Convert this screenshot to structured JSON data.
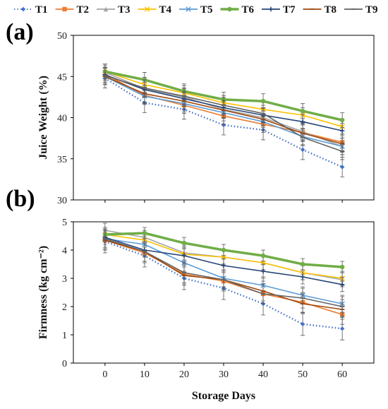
{
  "chart_data": {
    "type": "line",
    "x": [
      0,
      10,
      20,
      30,
      40,
      50,
      60
    ],
    "xlabel": "Storage Days",
    "xlim": [
      -8,
      68
    ],
    "legend_position": "top",
    "legend": [
      {
        "name": "T1",
        "color": "#4472c4",
        "dash": "dot",
        "marker": "diamond"
      },
      {
        "name": "T2",
        "color": "#ed7d31",
        "dash": "solid",
        "marker": "square"
      },
      {
        "name": "T3",
        "color": "#a5a5a5",
        "dash": "solid",
        "marker": "triangle"
      },
      {
        "name": "T4",
        "color": "#ffc000",
        "dash": "solid",
        "marker": "x"
      },
      {
        "name": "T5",
        "color": "#5b9bd5",
        "dash": "solid",
        "marker": "x"
      },
      {
        "name": "T6",
        "color": "#70ad47",
        "dash": "solid",
        "marker": "circle",
        "width": 3.5
      },
      {
        "name": "T7",
        "color": "#264478",
        "dash": "solid",
        "marker": "plus"
      },
      {
        "name": "T8",
        "color": "#9e480e",
        "dash": "solid",
        "marker": "dash"
      },
      {
        "name": "T9",
        "color": "#636363",
        "dash": "solid",
        "marker": "dash"
      }
    ],
    "panels": [
      {
        "label": "(a)",
        "ylabel": "Juice Weight (%)",
        "ylim": [
          30,
          50
        ],
        "yticks": [
          30,
          35,
          40,
          45,
          50
        ],
        "grid": false,
        "series": [
          {
            "name": "T1",
            "values": [
              44.8,
              41.8,
              41.0,
              39.1,
              38.5,
              36.1,
              34.0
            ],
            "err": [
              1.2,
              1.2,
              1.2,
              1.2,
              1.2,
              1.2,
              1.2
            ]
          },
          {
            "name": "T2",
            "values": [
              45.3,
              42.7,
              41.5,
              40.2,
              39.2,
              38.2,
              37.0
            ],
            "err": [
              1.0,
              1.0,
              1.0,
              1.0,
              1.0,
              1.0,
              1.0
            ]
          },
          {
            "name": "T3",
            "values": [
              45.5,
              43.5,
              42.5,
              41.0,
              40.0,
              38.3,
              36.5
            ],
            "err": [
              1.0,
              1.0,
              1.0,
              1.0,
              1.0,
              1.0,
              1.0
            ]
          },
          {
            "name": "T4",
            "values": [
              45.6,
              44.0,
              43.0,
              41.8,
              41.0,
              40.3,
              38.9
            ],
            "err": [
              0.9,
              0.9,
              0.9,
              0.9,
              0.9,
              0.9,
              0.9
            ]
          },
          {
            "name": "T5",
            "values": [
              45.0,
              42.6,
              41.7,
              40.6,
              39.5,
              37.7,
              36.5
            ],
            "err": [
              1.0,
              1.0,
              1.0,
              1.0,
              1.0,
              1.0,
              1.0
            ]
          },
          {
            "name": "T6",
            "values": [
              45.6,
              44.6,
              43.2,
              42.2,
              42.0,
              40.8,
              39.7
            ],
            "err": [
              0.9,
              0.9,
              0.9,
              0.9,
              0.9,
              0.9,
              0.9
            ]
          },
          {
            "name": "T7",
            "values": [
              45.2,
              43.4,
              42.3,
              41.2,
              40.3,
              39.5,
              38.4
            ],
            "err": [
              0.9,
              0.9,
              0.9,
              0.9,
              0.9,
              0.9,
              0.9
            ]
          },
          {
            "name": "T8",
            "values": [
              45.0,
              42.9,
              42.0,
              40.9,
              39.8,
              38.1,
              36.8
            ],
            "err": [
              1.0,
              1.0,
              1.0,
              1.0,
              1.0,
              1.0,
              1.0
            ]
          },
          {
            "name": "T9",
            "values": [
              45.1,
              43.6,
              42.6,
              41.5,
              40.5,
              37.6,
              35.9
            ],
            "err": [
              1.0,
              1.0,
              1.0,
              1.0,
              1.0,
              1.0,
              1.0
            ]
          }
        ]
      },
      {
        "label": "(b)",
        "ylabel": "Firmness (kg cm⁻²)",
        "ylim": [
          0,
          5
        ],
        "yticks": [
          0,
          1,
          2,
          3,
          4,
          5
        ],
        "grid": false,
        "series": [
          {
            "name": "T1",
            "values": [
              4.3,
              3.8,
              3.0,
              2.65,
              2.1,
              1.38,
              1.22
            ],
            "err": [
              0.4,
              0.4,
              0.4,
              0.4,
              0.4,
              0.4,
              0.4
            ]
          },
          {
            "name": "T2",
            "values": [
              4.35,
              3.9,
              3.15,
              2.9,
              2.45,
              2.15,
              1.72
            ],
            "err": [
              0.35,
              0.35,
              0.35,
              0.35,
              0.35,
              0.35,
              0.35
            ]
          },
          {
            "name": "T3",
            "values": [
              4.7,
              4.45,
              3.9,
              3.75,
              3.55,
              3.2,
              2.95
            ],
            "err": [
              0.25,
              0.25,
              0.25,
              0.25,
              0.25,
              0.25,
              0.25
            ]
          },
          {
            "name": "T4",
            "values": [
              4.55,
              4.35,
              3.85,
              3.75,
              3.55,
              3.2,
              3.0
            ],
            "err": [
              0.25,
              0.25,
              0.25,
              0.25,
              0.25,
              0.25,
              0.25
            ]
          },
          {
            "name": "T5",
            "values": [
              4.4,
              4.2,
              3.55,
              3.0,
              2.75,
              2.4,
              2.1
            ],
            "err": [
              0.3,
              0.3,
              0.3,
              0.3,
              0.3,
              0.3,
              0.3
            ]
          },
          {
            "name": "T6",
            "values": [
              4.55,
              4.6,
              4.25,
              4.0,
              3.8,
              3.5,
              3.4
            ],
            "err": [
              0.2,
              0.2,
              0.2,
              0.2,
              0.2,
              0.2,
              0.2
            ]
          },
          {
            "name": "T7",
            "values": [
              4.45,
              4.0,
              3.8,
              3.45,
              3.25,
              3.05,
              2.78
            ],
            "err": [
              0.25,
              0.25,
              0.25,
              0.25,
              0.25,
              0.25,
              0.25
            ]
          },
          {
            "name": "T8",
            "values": [
              4.35,
              3.95,
              3.1,
              2.95,
              2.55,
              2.1,
              1.9
            ],
            "err": [
              0.35,
              0.35,
              0.35,
              0.35,
              0.35,
              0.35,
              0.35
            ]
          },
          {
            "name": "T9",
            "values": [
              4.4,
              3.95,
              3.2,
              2.95,
              2.45,
              2.3,
              2.0
            ],
            "err": [
              0.35,
              0.35,
              0.35,
              0.35,
              0.35,
              0.35,
              0.35
            ]
          }
        ]
      }
    ]
  }
}
